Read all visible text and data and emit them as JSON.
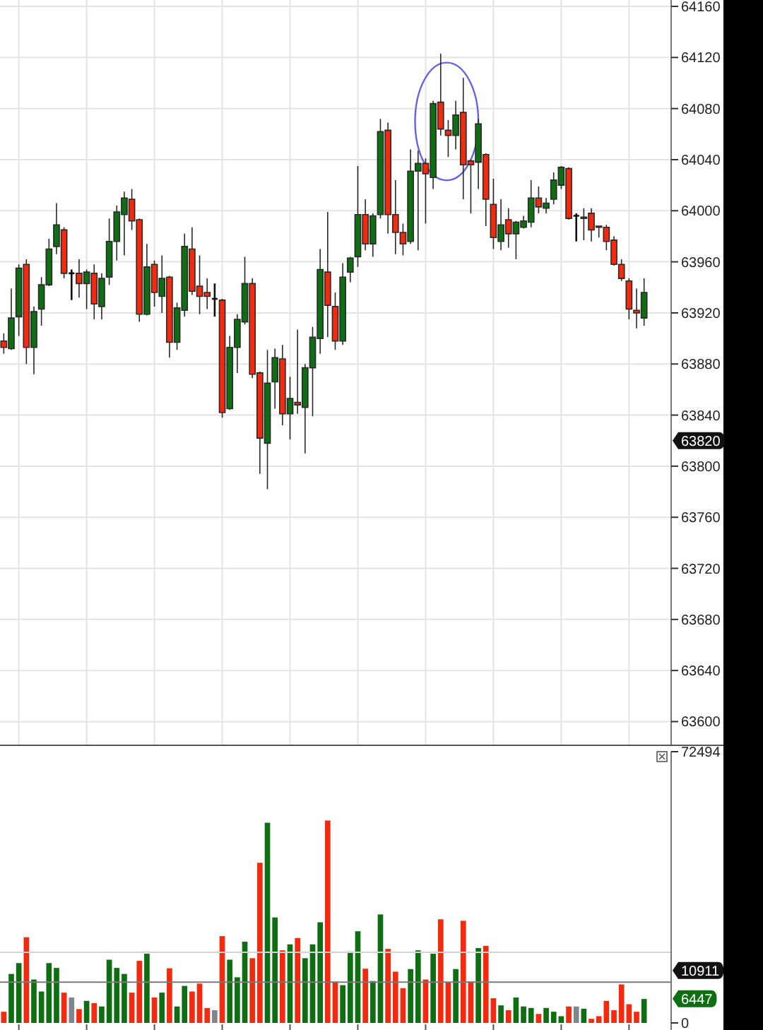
{
  "chart_data": [
    {
      "type": "candlestick",
      "categories": [
        null,
        null,
        null,
        null,
        null,
        null,
        null,
        null,
        null,
        null,
        null,
        null,
        null,
        null,
        null,
        null,
        null,
        null,
        null,
        null,
        null,
        null,
        null,
        null,
        null,
        null,
        null,
        null,
        null,
        null,
        null,
        null,
        null,
        null,
        null,
        null,
        null,
        null,
        null,
        null,
        null,
        null,
        null,
        null,
        null,
        null,
        null,
        null,
        null,
        null,
        null,
        null,
        null,
        null,
        null,
        null,
        null,
        null,
        null,
        null,
        null,
        null,
        null,
        null,
        null,
        null,
        null,
        null,
        null,
        null,
        null,
        null,
        null,
        null,
        null,
        null,
        null,
        null,
        null,
        null,
        null,
        null,
        null,
        null,
        null,
        null
      ],
      "ohlc": [
        [
          63898,
          63904,
          63888,
          63893
        ],
        [
          63892,
          63939,
          63891,
          63916
        ],
        [
          63917,
          63958,
          63902,
          63955
        ],
        [
          63958,
          63962,
          63880,
          63893
        ],
        [
          63893,
          63925,
          63872,
          63921
        ],
        [
          63923,
          63948,
          63910,
          63942
        ],
        [
          63942,
          63978,
          63941,
          63970
        ],
        [
          63972,
          64006,
          63966,
          63989
        ],
        [
          63985,
          63987,
          63947,
          63951
        ],
        [
          63951,
          63954,
          63930,
          63951
        ],
        [
          63951,
          63962,
          63932,
          63943
        ],
        [
          63943,
          63954,
          63923,
          63952
        ],
        [
          63951,
          63958,
          63915,
          63927
        ],
        [
          63925,
          63951,
          63915,
          63947
        ],
        [
          63948,
          63994,
          63942,
          63976
        ],
        [
          63976,
          64004,
          63961,
          63999
        ],
        [
          63997,
          64015,
          63965,
          64010
        ],
        [
          64009,
          64017,
          63985,
          63992
        ],
        [
          63993,
          63994,
          63913,
          63919
        ],
        [
          63919,
          63974,
          63918,
          63956
        ],
        [
          63958,
          63961,
          63925,
          63936
        ],
        [
          63933,
          63965,
          63920,
          63947
        ],
        [
          63948,
          63949,
          63885,
          63897
        ],
        [
          63897,
          63928,
          63891,
          63924
        ],
        [
          63922,
          63982,
          63917,
          63972
        ],
        [
          63970,
          63987,
          63934,
          63937
        ],
        [
          63941,
          63965,
          63919,
          63933
        ],
        [
          63936,
          63947,
          63923,
          63933
        ],
        [
          63931,
          63943,
          63917,
          63931
        ],
        [
          63930,
          63931,
          63838,
          63842
        ],
        [
          63845,
          63902,
          63844,
          63893
        ],
        [
          63893,
          63919,
          63873,
          63915
        ],
        [
          63913,
          63964,
          63911,
          63943
        ],
        [
          63943,
          63947,
          63869,
          63872
        ],
        [
          63873,
          63874,
          63794,
          63822
        ],
        [
          63818,
          63891,
          63782,
          63865
        ],
        [
          63866,
          63892,
          63845,
          63885
        ],
        [
          63884,
          63895,
          63832,
          63841
        ],
        [
          63841,
          63870,
          63821,
          63853
        ],
        [
          63850,
          63907,
          63841,
          63848
        ],
        [
          63846,
          63880,
          63810,
          63877
        ],
        [
          63877,
          63909,
          63839,
          63901
        ],
        [
          63900,
          63970,
          63888,
          63954
        ],
        [
          63952,
          63999,
          63901,
          63926
        ],
        [
          63925,
          63936,
          63891,
          63898
        ],
        [
          63898,
          63959,
          63895,
          63948
        ],
        [
          63952,
          63964,
          63944,
          63963
        ],
        [
          63964,
          64035,
          63956,
          63997
        ],
        [
          63997,
          64009,
          63969,
          63974
        ],
        [
          63974,
          63998,
          63964,
          63996
        ],
        [
          63997,
          64072,
          63994,
          64062
        ],
        [
          64063,
          64069,
          63982,
          63997
        ],
        [
          63997,
          64024,
          63966,
          63983
        ],
        [
          63983,
          63990,
          63965,
          63974
        ],
        [
          63976,
          64048,
          63974,
          64031
        ],
        [
          64031,
          64047,
          63969,
          64037
        ],
        [
          64037,
          64041,
          63990,
          64029
        ],
        [
          64026,
          64086,
          64017,
          64084
        ],
        [
          64085,
          64123,
          64059,
          64064
        ],
        [
          64063,
          64071,
          64042,
          64059
        ],
        [
          64059,
          64086,
          64048,
          64075
        ],
        [
          64077,
          64104,
          64009,
          64036
        ],
        [
          64039,
          64040,
          63998,
          64036
        ],
        [
          64038,
          64072,
          64017,
          64068
        ],
        [
          64044,
          64045,
          63988,
          64009
        ],
        [
          64005,
          64025,
          63970,
          63979
        ],
        [
          63976,
          64009,
          63969,
          63989
        ],
        [
          63993,
          64002,
          63971,
          63982
        ],
        [
          63982,
          63992,
          63962,
          63991
        ],
        [
          63987,
          63996,
          63986,
          63992
        ],
        [
          63991,
          64024,
          63987,
          64010
        ],
        [
          64010,
          64019,
          63998,
          64003
        ],
        [
          64002,
          64010,
          63998,
          64006
        ],
        [
          64009,
          64030,
          64005,
          64024
        ],
        [
          64020,
          64035,
          64017,
          64034
        ],
        [
          64033,
          64034,
          63993,
          63994
        ],
        [
          63996,
          63998,
          63976,
          63996
        ],
        [
          63994,
          64002,
          63977,
          63995
        ],
        [
          63998,
          64002,
          63976,
          63985
        ],
        [
          63988,
          63988,
          63979,
          63987
        ],
        [
          63987,
          63989,
          63969,
          63976
        ],
        [
          63977,
          63980,
          63957,
          63958
        ],
        [
          63958,
          63962,
          63945,
          63947
        ],
        [
          63945,
          63947,
          63915,
          63923
        ],
        [
          63922,
          63939,
          63908,
          63920
        ],
        [
          63916,
          63947,
          63910,
          63936
        ]
      ],
      "colors": [
        "#f4290d",
        "#0e6e12",
        "#0e6e12",
        "#f4290d",
        "#0e6e12",
        "#0e6e12",
        "#0e6e12",
        "#0e6e12",
        "#f4290d",
        "#111111",
        "#f4290d",
        "#0e6e12",
        "#f4290d",
        "#0e6e12",
        "#0e6e12",
        "#0e6e12",
        "#0e6e12",
        "#f4290d",
        "#f4290d",
        "#0e6e12",
        "#f4290d",
        "#0e6e12",
        "#f4290d",
        "#0e6e12",
        "#0e6e12",
        "#f4290d",
        "#f4290d",
        "#f4290d",
        "#111111",
        "#f4290d",
        "#0e6e12",
        "#0e6e12",
        "#0e6e12",
        "#f4290d",
        "#f4290d",
        "#0e6e12",
        "#0e6e12",
        "#f4290d",
        "#0e6e12",
        "#f4290d",
        "#0e6e12",
        "#0e6e12",
        "#0e6e12",
        "#f4290d",
        "#f4290d",
        "#0e6e12",
        "#0e6e12",
        "#0e6e12",
        "#f4290d",
        "#0e6e12",
        "#0e6e12",
        "#f4290d",
        "#f4290d",
        "#f4290d",
        "#0e6e12",
        "#0e6e12",
        "#f4290d",
        "#0e6e12",
        "#f4290d",
        "#f4290d",
        "#0e6e12",
        "#f4290d",
        "#f4290d",
        "#0e6e12",
        "#f4290d",
        "#f4290d",
        "#0e6e12",
        "#f4290d",
        "#0e6e12",
        "#0e6e12",
        "#0e6e12",
        "#f4290d",
        "#0e6e12",
        "#0e6e12",
        "#0e6e12",
        "#f4290d",
        "#111111",
        "#0e6e12",
        "#f4290d",
        "#f4290d",
        "#f4290d",
        "#f4290d",
        "#f4290d",
        "#f4290d",
        "#f4290d",
        "#0e6e12"
      ],
      "ylim": [
        63582,
        64165
      ],
      "yticks": [
        63600,
        63640,
        63680,
        63720,
        63760,
        63800,
        {
          "value": 63820,
          "label": "63820"
        },
        63840,
        63880,
        63920,
        63960,
        64000,
        64040,
        64080,
        64120,
        64160
      ],
      "grid": true,
      "tick_labels": "y"
    },
    {
      "type": "bar",
      "categories": [
        null,
        null,
        null,
        null,
        null,
        null,
        null,
        null,
        null,
        null,
        null,
        null,
        null,
        null,
        null,
        null,
        null,
        null,
        null,
        null,
        null,
        null,
        null,
        null,
        null,
        null,
        null,
        null,
        null,
        null,
        null,
        null,
        null,
        null,
        null,
        null,
        null,
        null,
        null,
        null,
        null,
        null,
        null,
        null,
        null,
        null,
        null,
        null,
        null,
        null,
        null,
        null,
        null,
        null,
        null,
        null,
        null,
        null,
        null,
        null,
        null,
        null,
        null,
        null,
        null,
        null,
        null,
        null,
        null,
        null,
        null,
        null,
        null,
        null,
        null,
        null,
        null,
        null,
        null,
        null,
        null,
        null,
        null,
        null,
        null,
        null
      ],
      "values": [
        3000,
        13100,
        16000,
        22900,
        11600,
        8400,
        16000,
        14700,
        8100,
        6800,
        3700,
        5900,
        5300,
        4400,
        16900,
        14700,
        13100,
        8100,
        16600,
        18500,
        6800,
        8100,
        14600,
        4400,
        9900,
        8400,
        10500,
        4000,
        3400,
        23200,
        16900,
        12200,
        21700,
        17300,
        42800,
        53500,
        28200,
        19400,
        21000,
        22700,
        17300,
        21000,
        26900,
        54100,
        11000,
        10100,
        19100,
        24500,
        14500,
        11200,
        29000,
        19800,
        13700,
        9300,
        14400,
        19400,
        11600,
        18500,
        27700,
        10800,
        14400,
        27300,
        11100,
        20000,
        20600,
        6600,
        4700,
        3400,
        6800,
        4400,
        4000,
        2400,
        4000,
        3000,
        1800,
        4400,
        4400,
        3800,
        1100,
        1800,
        5900,
        3400,
        10300,
        5000,
        3000,
        6400
      ],
      "colors": [
        "#f4290d",
        "#0e6e12",
        "#0e6e12",
        "#f4290d",
        "#0e6e12",
        "#0e6e12",
        "#0e6e12",
        "#0e6e12",
        "#f4290d",
        "#80848f",
        "#f4290d",
        "#0e6e12",
        "#f4290d",
        "#0e6e12",
        "#0e6e12",
        "#0e6e12",
        "#0e6e12",
        "#f4290d",
        "#f4290d",
        "#0e6e12",
        "#f4290d",
        "#0e6e12",
        "#f4290d",
        "#0e6e12",
        "#0e6e12",
        "#f4290d",
        "#f4290d",
        "#f4290d",
        "#80848f",
        "#f4290d",
        "#0e6e12",
        "#0e6e12",
        "#0e6e12",
        "#f4290d",
        "#f4290d",
        "#0e6e12",
        "#0e6e12",
        "#f4290d",
        "#0e6e12",
        "#f4290d",
        "#0e6e12",
        "#0e6e12",
        "#0e6e12",
        "#f4290d",
        "#f4290d",
        "#0e6e12",
        "#0e6e12",
        "#0e6e12",
        "#f4290d",
        "#0e6e12",
        "#0e6e12",
        "#f4290d",
        "#f4290d",
        "#f4290d",
        "#0e6e12",
        "#0e6e12",
        "#f4290d",
        "#0e6e12",
        "#f4290d",
        "#f4290d",
        "#0e6e12",
        "#f4290d",
        "#f4290d",
        "#0e6e12",
        "#f4290d",
        "#f4290d",
        "#0e6e12",
        "#f4290d",
        "#0e6e12",
        "#0e6e12",
        "#0e6e12",
        "#f4290d",
        "#0e6e12",
        "#0e6e12",
        "#0e6e12",
        "#f4290d",
        "#80848f",
        "#0e6e12",
        "#f4290d",
        "#f4290d",
        "#f4290d",
        "#f4290d",
        "#f4290d",
        "#f4290d",
        "#f4290d",
        "#0e6e12"
      ],
      "ylim": [
        0,
        72494
      ],
      "yticks": [
        0,
        {
          "value": 6447,
          "label": "6447"
        },
        72494
      ],
      "tick_labels": "y",
      "ref_lines": [
        {
          "axis": "y",
          "value": 18900,
          "color": "#d4d4d4"
        },
        {
          "axis": "y",
          "value": 10911,
          "label": "10911",
          "color": "#7a7a7a"
        }
      ]
    }
  ]
}
